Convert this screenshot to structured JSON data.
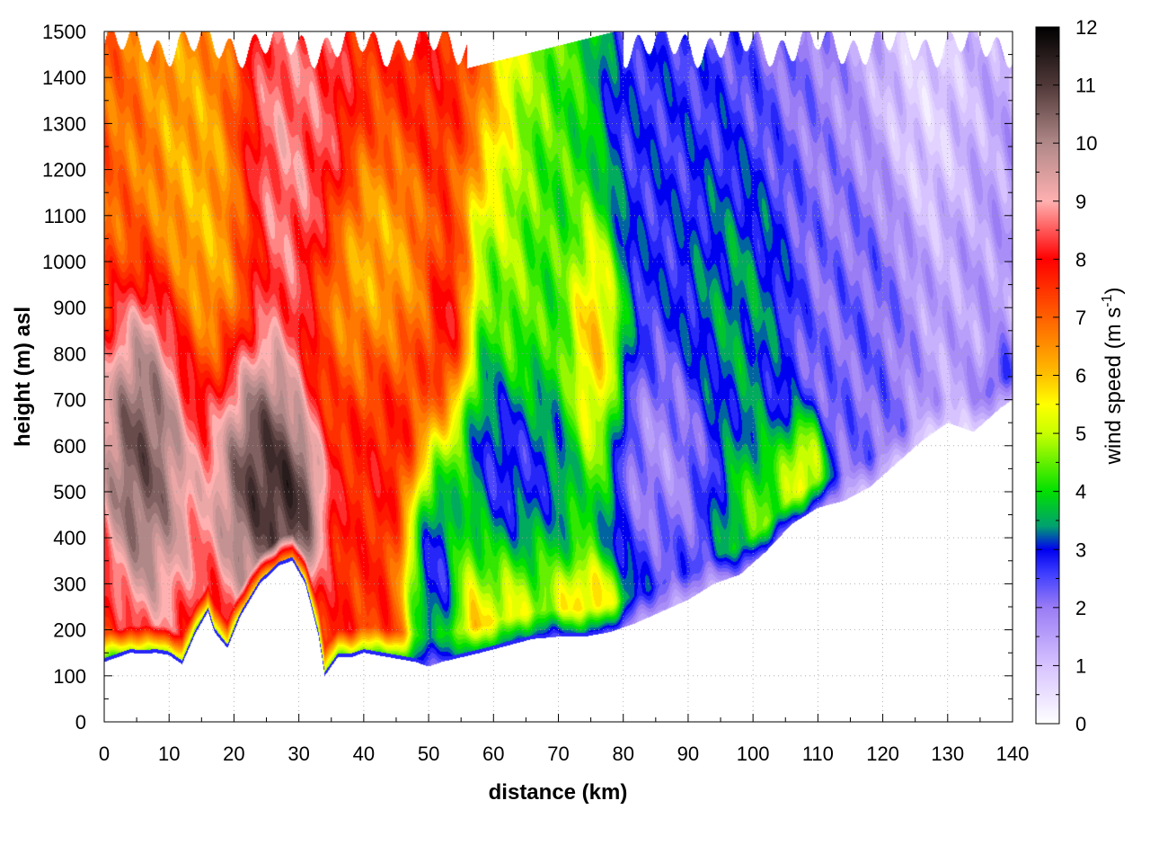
{
  "chart_data": {
    "type": "heatmap",
    "xlabel": "distance (km)",
    "ylabel": "height (m) asl",
    "colorbar_label": "wind speed (m s",
    "colorbar_label_sup": "-1",
    "colorbar_label_close": ")",
    "xlim": [
      0,
      140
    ],
    "ylim": [
      0,
      1500
    ],
    "zlim": [
      0,
      12
    ],
    "xticks": [
      0,
      10,
      20,
      30,
      40,
      50,
      60,
      70,
      80,
      90,
      100,
      110,
      120,
      130,
      140
    ],
    "yticks": [
      0,
      100,
      200,
      300,
      400,
      500,
      600,
      700,
      800,
      900,
      1000,
      1100,
      1200,
      1300,
      1400,
      1500
    ],
    "cbticks": [
      0,
      1,
      2,
      3,
      4,
      5,
      6,
      7,
      8,
      9,
      10,
      11,
      12
    ],
    "grid": true,
    "colormap": [
      {
        "v": 0,
        "color": "#ffffff"
      },
      {
        "v": 1,
        "color": "#d7c3ff"
      },
      {
        "v": 2,
        "color": "#9a7cf5"
      },
      {
        "v": 2.6,
        "color": "#3c3cff"
      },
      {
        "v": 3,
        "color": "#0000f0"
      },
      {
        "v": 3.4,
        "color": "#00a070"
      },
      {
        "v": 4,
        "color": "#00e000"
      },
      {
        "v": 5,
        "color": "#c8ff00"
      },
      {
        "v": 5.5,
        "color": "#ffff00"
      },
      {
        "v": 6,
        "color": "#ffc000"
      },
      {
        "v": 7,
        "color": "#ff6000"
      },
      {
        "v": 8,
        "color": "#ff0000"
      },
      {
        "v": 9,
        "color": "#ffb0b0"
      },
      {
        "v": 10,
        "color": "#b08888"
      },
      {
        "v": 11,
        "color": "#503838"
      },
      {
        "v": 12,
        "color": "#000000"
      }
    ],
    "terrain": {
      "x": [
        0,
        2,
        4,
        6,
        8,
        10,
        12,
        14,
        16,
        17,
        19,
        21,
        24,
        27,
        29,
        31,
        33,
        34,
        36,
        38,
        40,
        44,
        46,
        48,
        50,
        52,
        55,
        58,
        62,
        66,
        70,
        74,
        78,
        82,
        86,
        90,
        94,
        98,
        102,
        106,
        110,
        114,
        118,
        122,
        126,
        130,
        134,
        138,
        140
      ],
      "y": [
        130,
        140,
        150,
        148,
        150,
        145,
        125,
        190,
        240,
        195,
        160,
        230,
        300,
        340,
        350,
        300,
        190,
        100,
        140,
        140,
        150,
        140,
        135,
        130,
        120,
        130,
        140,
        150,
        165,
        180,
        185,
        185,
        195,
        215,
        240,
        265,
        300,
        320,
        370,
        430,
        465,
        480,
        510,
        560,
        610,
        650,
        630,
        680,
        700
      ]
    },
    "fields": [
      {
        "x": 6,
        "y": 580,
        "sx": 3.8,
        "sy": 170,
        "v": 12.5
      },
      {
        "x": 9,
        "y": 520,
        "sx": 4.0,
        "sy": 220,
        "v": 10.5
      },
      {
        "x": 22,
        "y": 560,
        "sx": 4.5,
        "sy": 160,
        "v": 13.0
      },
      {
        "x": 29,
        "y": 470,
        "sx": 2.5,
        "sy": 90,
        "v": 12.0
      },
      {
        "x": 17,
        "y": 1000,
        "sx": 4.0,
        "sy": 350,
        "v": 5.5
      },
      {
        "x": 27,
        "y": 1220,
        "sx": 4.0,
        "sy": 190,
        "v": 9.2
      },
      {
        "x": 33,
        "y": 1320,
        "sx": 3.0,
        "sy": 170,
        "v": 8.6
      },
      {
        "x": 43,
        "y": 680,
        "sx": 4.0,
        "sy": 140,
        "v": 8.2
      },
      {
        "x": 42,
        "y": 940,
        "sx": 5.0,
        "sy": 170,
        "v": 5.4
      },
      {
        "x": 54,
        "y": 860,
        "sx": 2.0,
        "sy": 110,
        "v": 9.0
      },
      {
        "x": 51,
        "y": 330,
        "sx": 2.5,
        "sy": 160,
        "v": 0.6
      },
      {
        "x": 63,
        "y": 560,
        "sx": 5.0,
        "sy": 120,
        "v": 1.2
      },
      {
        "x": 58,
        "y": 700,
        "sx": 2.5,
        "sy": 240,
        "v": 2.6
      },
      {
        "x": 67,
        "y": 950,
        "sx": 3.0,
        "sy": 300,
        "v": 4.0
      },
      {
        "x": 75,
        "y": 260,
        "sx": 3.0,
        "sy": 50,
        "v": 6.5
      },
      {
        "x": 86,
        "y": 610,
        "sx": 4.5,
        "sy": 120,
        "v": 1.3
      },
      {
        "x": 76,
        "y": 820,
        "sx": 2.5,
        "sy": 160,
        "v": 7.0
      },
      {
        "x": 88,
        "y": 1200,
        "sx": 6.0,
        "sy": 260,
        "v": 2.8
      },
      {
        "x": 97,
        "y": 880,
        "sx": 5.0,
        "sy": 200,
        "v": 4.0
      },
      {
        "x": 102,
        "y": 450,
        "sx": 4.0,
        "sy": 100,
        "v": 5.5
      },
      {
        "x": 108,
        "y": 540,
        "sx": 2.0,
        "sy": 70,
        "v": 7.0
      },
      {
        "x": 118,
        "y": 850,
        "sx": 4.0,
        "sy": 280,
        "v": 2.5
      },
      {
        "x": 127,
        "y": 1330,
        "sx": 6.0,
        "sy": 160,
        "v": 0.4
      },
      {
        "x": 135,
        "y": 1050,
        "sx": 4.0,
        "sy": 350,
        "v": 1.6
      },
      {
        "x": 138,
        "y": 730,
        "sx": 1.5,
        "sy": 50,
        "v": 3.6
      }
    ],
    "background_profile": {
      "x": [
        0,
        10,
        20,
        30,
        40,
        50,
        56,
        60,
        65,
        70,
        75,
        80,
        90,
        100,
        110,
        120,
        130,
        140
      ],
      "v": [
        7.0,
        6.5,
        8.0,
        8.0,
        7.5,
        7.8,
        7.5,
        6.2,
        5.4,
        4.5,
        4.0,
        2.8,
        2.5,
        2.2,
        2.0,
        1.6,
        1.3,
        1.6
      ]
    }
  }
}
